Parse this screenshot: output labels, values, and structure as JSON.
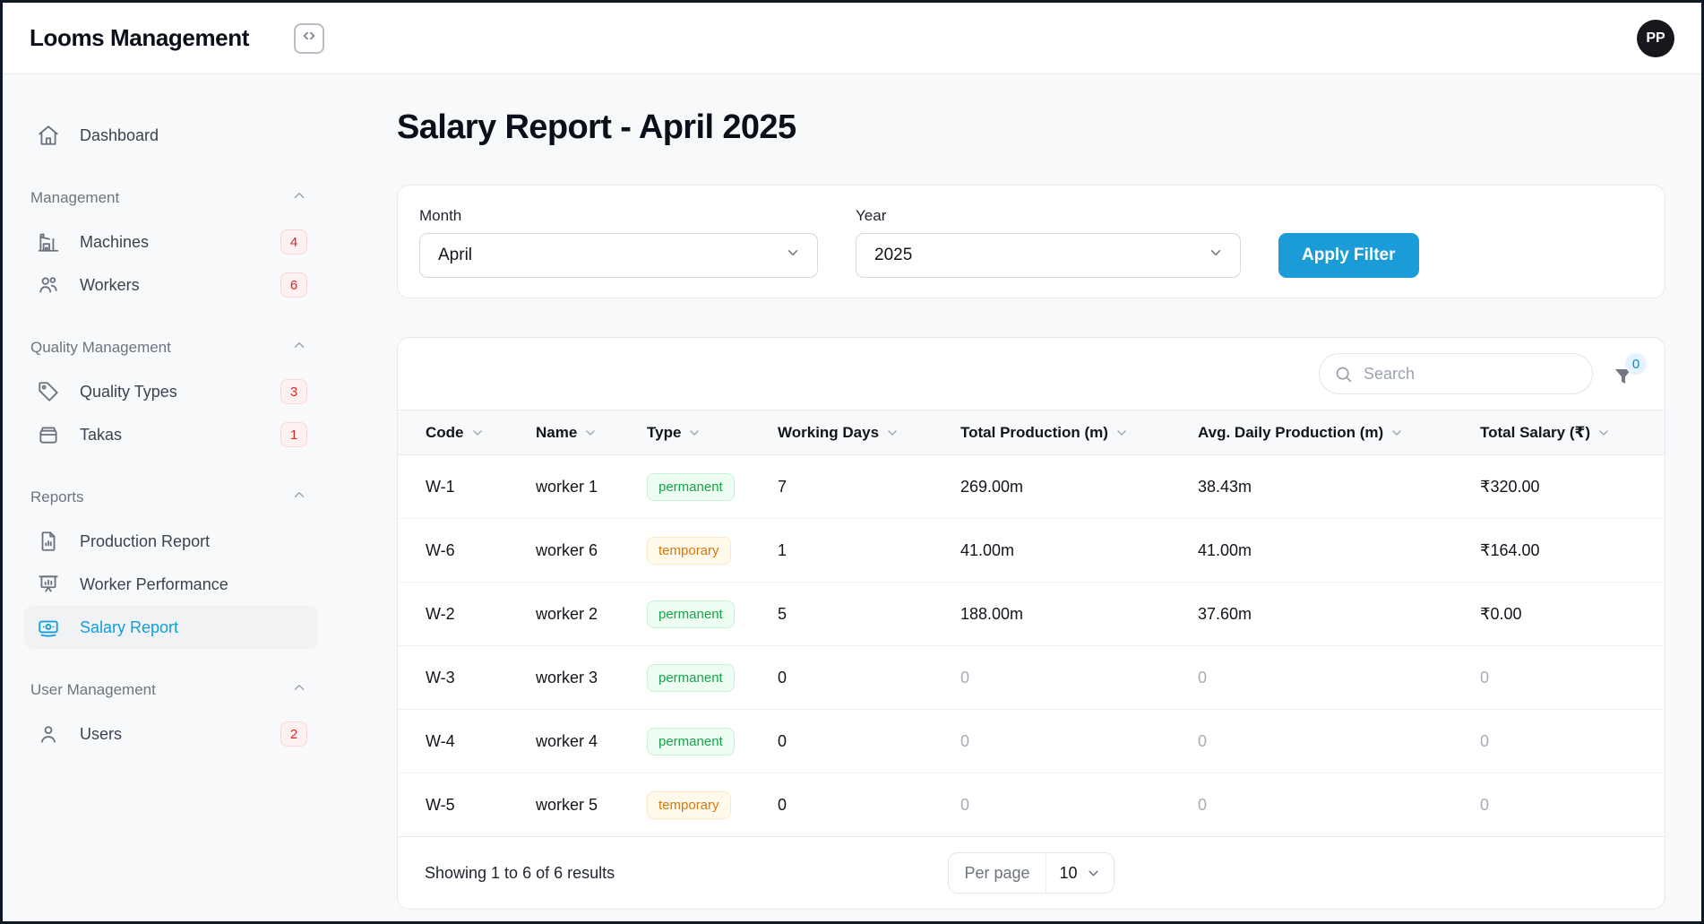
{
  "colors": {
    "page-bg": "#f8f9fa",
    "page-border": "#101826",
    "line": "#e7e9ec",
    "accent": "#1b9cd8",
    "accent-link": "#0f9edb",
    "badge-red-text": "#dc2626",
    "badge-red-bg": "#fef1f2",
    "permanent-green": "#16a34a",
    "temporary-orange": "#d97706"
  },
  "topbar": {
    "title": "Looms Management",
    "avatar_initials": "PP"
  },
  "sidebar": {
    "dashboard_label": "Dashboard",
    "sections": [
      {
        "label": "Management",
        "items": [
          {
            "label": "Machines",
            "badge": "4"
          },
          {
            "label": "Workers",
            "badge": "6"
          }
        ]
      },
      {
        "label": "Quality Management",
        "items": [
          {
            "label": "Quality Types",
            "badge": "3"
          },
          {
            "label": "Takas",
            "badge": "1"
          }
        ]
      },
      {
        "label": "Reports",
        "items": [
          {
            "label": "Production Report"
          },
          {
            "label": "Worker Performance"
          },
          {
            "label": "Salary Report"
          }
        ]
      },
      {
        "label": "User Management",
        "items": [
          {
            "label": "Users",
            "badge": "2"
          }
        ]
      }
    ]
  },
  "main": {
    "title": "Salary Report - April 2025",
    "filter": {
      "month_label": "Month",
      "month_value": "April",
      "year_label": "Year",
      "year_value": "2025",
      "apply_label": "Apply Filter"
    },
    "table": {
      "search_placeholder": "Search",
      "filter_count": "0",
      "columns": [
        "Code",
        "Name",
        "Type",
        "Working Days",
        "Total Production (m)",
        "Avg. Daily Production (m)",
        "Total Salary (₹)"
      ],
      "rows": [
        {
          "code": "W-1",
          "name": "worker 1",
          "type": "permanent",
          "working_days": "7",
          "total_production": "269.00m",
          "avg_daily": "38.43m",
          "total_salary": "₹320.00",
          "muted": false
        },
        {
          "code": "W-6",
          "name": "worker 6",
          "type": "temporary",
          "working_days": "1",
          "total_production": "41.00m",
          "avg_daily": "41.00m",
          "total_salary": "₹164.00",
          "muted": false
        },
        {
          "code": "W-2",
          "name": "worker 2",
          "type": "permanent",
          "working_days": "5",
          "total_production": "188.00m",
          "avg_daily": "37.60m",
          "total_salary": "₹0.00",
          "muted": false
        },
        {
          "code": "W-3",
          "name": "worker 3",
          "type": "permanent",
          "working_days": "0",
          "total_production": "0",
          "avg_daily": "0",
          "total_salary": "0",
          "muted": true
        },
        {
          "code": "W-4",
          "name": "worker 4",
          "type": "permanent",
          "working_days": "0",
          "total_production": "0",
          "avg_daily": "0",
          "total_salary": "0",
          "muted": true
        },
        {
          "code": "W-5",
          "name": "worker 5",
          "type": "temporary",
          "working_days": "0",
          "total_production": "0",
          "avg_daily": "0",
          "total_salary": "0",
          "muted": true
        }
      ],
      "footer": {
        "showing_text": "Showing 1 to 6 of 6 results",
        "per_page_label": "Per page",
        "per_page_value": "10"
      }
    }
  }
}
